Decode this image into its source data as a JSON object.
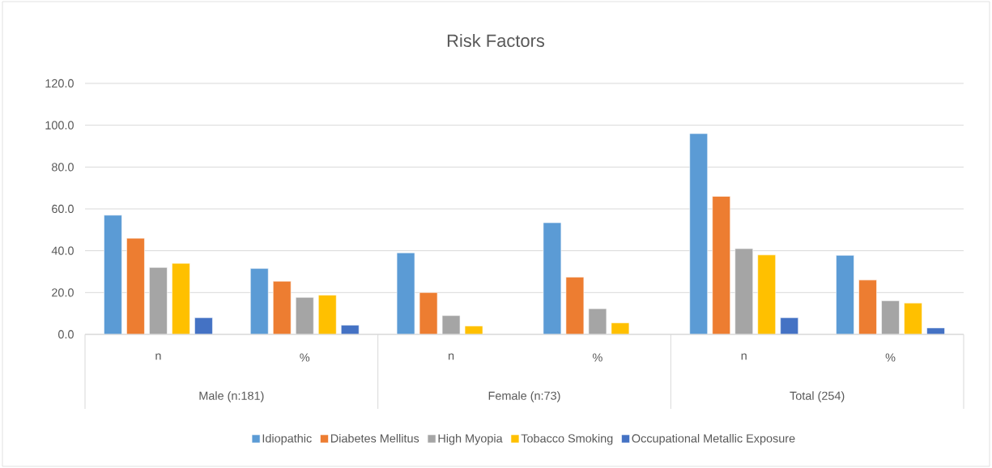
{
  "chart_data": {
    "type": "bar",
    "title": "Risk Factors",
    "categories": [
      "n",
      "%",
      "n",
      "%",
      "n",
      "%"
    ],
    "annotations": [
      "Male (n:181)",
      "Female (n:73)",
      "Total (254)"
    ],
    "series": [
      {
        "name": "Idiopathic",
        "color": "#5b9bd5",
        "values": [
          57,
          31.5,
          39,
          53.4,
          96,
          37.8
        ]
      },
      {
        "name": "Diabetes Mellitus",
        "color": "#ed7d31",
        "values": [
          46,
          25.4,
          20,
          27.4,
          66,
          26.0
        ]
      },
      {
        "name": "High Myopia",
        "color": "#a5a5a5",
        "values": [
          32,
          17.7,
          9,
          12.3,
          41,
          16.1
        ]
      },
      {
        "name": "Tobacco Smoking",
        "color": "#ffc000",
        "values": [
          34,
          18.8,
          4,
          5.5,
          38,
          15.0
        ]
      },
      {
        "name": "Occupational Metallic Exposure",
        "color": "#4472c4",
        "values": [
          8,
          4.4,
          null,
          null,
          8,
          3.1
        ]
      }
    ],
    "ylim": [
      0,
      120
    ],
    "yticks": [
      {
        "value": 0,
        "label": "0.0"
      },
      {
        "value": 20,
        "label": "20.0"
      },
      {
        "value": 40,
        "label": "40.0"
      },
      {
        "value": 60,
        "label": "60.0"
      },
      {
        "value": 80,
        "label": "80.0"
      },
      {
        "value": 100,
        "label": "100.0"
      },
      {
        "value": 120,
        "label": "120.0"
      }
    ],
    "grid": "y",
    "legend": "bottom"
  }
}
